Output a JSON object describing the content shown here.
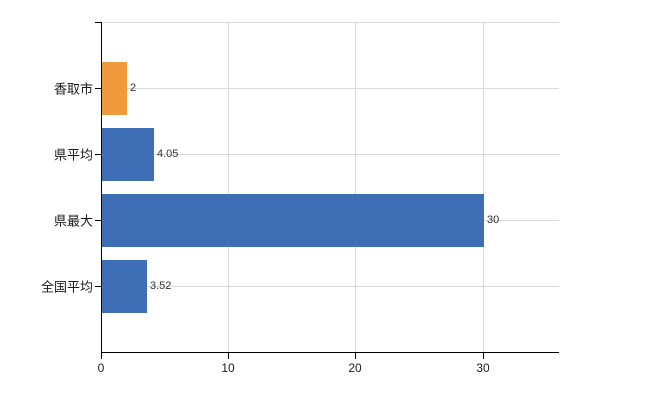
{
  "chart_data": {
    "type": "bar",
    "orientation": "horizontal",
    "title": "",
    "categories": [
      "香取市",
      "県平均",
      "県最大",
      "全国平均"
    ],
    "values": [
      2,
      4.05,
      30,
      3.52
    ],
    "value_labels": [
      "2",
      "4.05",
      "30",
      "3.52"
    ],
    "bar_colors": [
      "#EF9A3D",
      "#3E6FB6",
      "#3E6FB6",
      "#3E6FB6"
    ],
    "xlabel": "",
    "ylabel": "",
    "xlim": [
      0,
      36
    ],
    "x_tick_values": [
      0,
      10,
      20,
      30
    ],
    "x_tick_labels": [
      "0",
      "10",
      "20",
      "30"
    ],
    "grid": true,
    "gridlines_horizontal_at_category_centers": true,
    "gridlines_vertical_at_ticks": true,
    "legend": "none",
    "colors": {
      "background": "#ffffff",
      "gridline": "#d9d9d9",
      "axis": "#000000",
      "category_text": "#1a1a1a",
      "value_text": "#303030",
      "tick_text": "#1a1a1a"
    }
  }
}
